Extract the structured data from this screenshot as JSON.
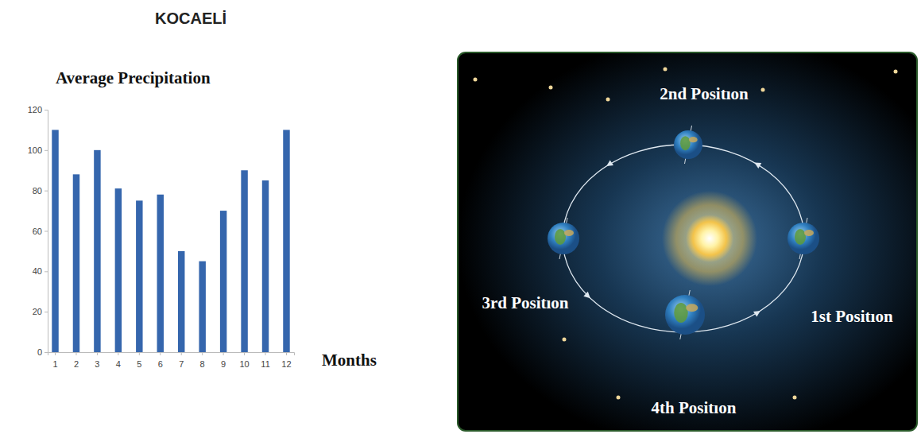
{
  "chart_data": {
    "type": "bar",
    "title": "KOCAELİ",
    "subtitle": "Average Precipitation",
    "xlabel": "Months",
    "categories": [
      "1",
      "2",
      "3",
      "4",
      "5",
      "6",
      "7",
      "8",
      "9",
      "10",
      "11",
      "12"
    ],
    "values": [
      110,
      88,
      100,
      81,
      75,
      78,
      50,
      45,
      70,
      90,
      85,
      110
    ],
    "color": "#3566ad",
    "ylim": [
      0,
      120
    ],
    "yticks": [
      0,
      20,
      40,
      60,
      80,
      100,
      120
    ],
    "grid": false
  },
  "diagram": {
    "labels": [
      "1st Positıon",
      "2nd Positıon",
      "3rd Positıon",
      "4th Positıon"
    ]
  }
}
